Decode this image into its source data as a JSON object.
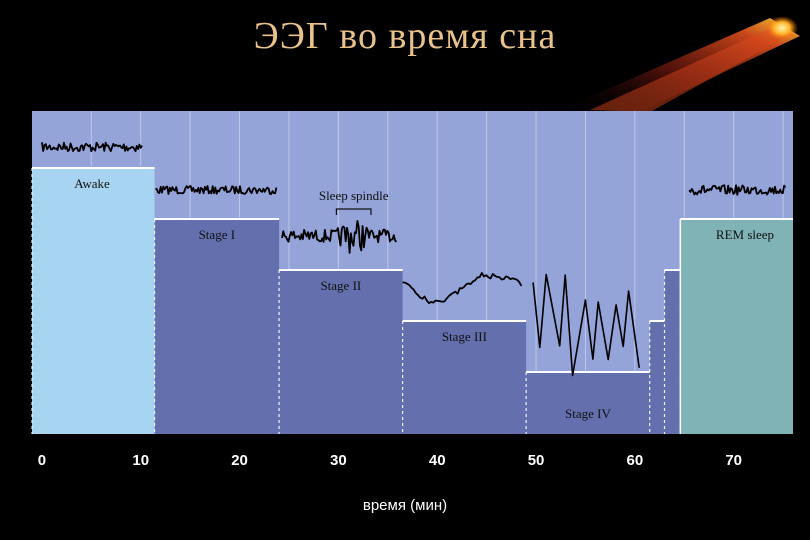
{
  "slide": {
    "title": "ЭЭГ во время сна"
  },
  "chart_data": {
    "type": "area",
    "title": "ЭЭГ во время сна",
    "xlabel": "время  (мин)",
    "ylabel": "",
    "xlim": [
      -1,
      76
    ],
    "x_ticks": [
      0,
      10,
      20,
      30,
      40,
      50,
      60,
      70
    ],
    "grid": true,
    "colors": {
      "background": "#94a3d8",
      "awake": "#a7d5f1",
      "sleep": "#6470ad",
      "rem": "#7fb3b6",
      "stage_edge": "#ffffff",
      "trace": "#000000"
    },
    "stages": [
      {
        "name": "Awake",
        "label": "Awake",
        "x_start": -1,
        "x_end": 11.4,
        "depth": 0
      },
      {
        "name": "Stage I",
        "label": "Stage I",
        "x_start": 11.4,
        "x_end": 24,
        "depth": 1
      },
      {
        "name": "Stage II",
        "label": "Stage II",
        "x_start": 24,
        "x_end": 36.5,
        "depth": 2
      },
      {
        "name": "Stage III",
        "label": "Stage III",
        "x_start": 36.5,
        "x_end": 49,
        "depth": 3
      },
      {
        "name": "Stage IV",
        "label": "Stage IV",
        "x_start": 49,
        "x_end": 61.5,
        "depth": 4
      },
      {
        "name": "Stage III",
        "label": "",
        "x_start": 61.5,
        "x_end": 63,
        "depth": 3
      },
      {
        "name": "Stage I",
        "label": "",
        "x_start": 63,
        "x_end": 64.6,
        "depth": 2
      },
      {
        "name": "REM sleep",
        "label": "REM sleep",
        "x_start": 64.6,
        "x_end": 76,
        "depth": 1
      }
    ],
    "annotations": [
      {
        "text": "Sleep spindle",
        "x_start": 29.8,
        "x_end": 33.3
      }
    ],
    "traces": [
      {
        "stage": "Awake",
        "x_start": 0,
        "x_end": 10.2,
        "amplitude": 0.06,
        "frequency": "high"
      },
      {
        "stage": "Stage I",
        "x_start": 11.5,
        "x_end": 23.8,
        "amplitude": 0.05,
        "frequency": "high"
      },
      {
        "stage": "Stage II",
        "x_start": 24.3,
        "x_end": 36,
        "amplitude": 0.08,
        "frequency": "high",
        "spindle": [
          29.8,
          33.3
        ]
      },
      {
        "stage": "Stage III",
        "x_start": 36.5,
        "x_end": 48.7,
        "amplitude": 0.17,
        "frequency": "medium"
      },
      {
        "stage": "Stage IV",
        "x_start": 49.7,
        "x_end": 61.5,
        "amplitude": 0.52,
        "frequency": "low"
      },
      {
        "stage": "REM sleep",
        "x_start": 65.5,
        "x_end": 75.3,
        "amplitude": 0.06,
        "frequency": "high"
      }
    ]
  }
}
